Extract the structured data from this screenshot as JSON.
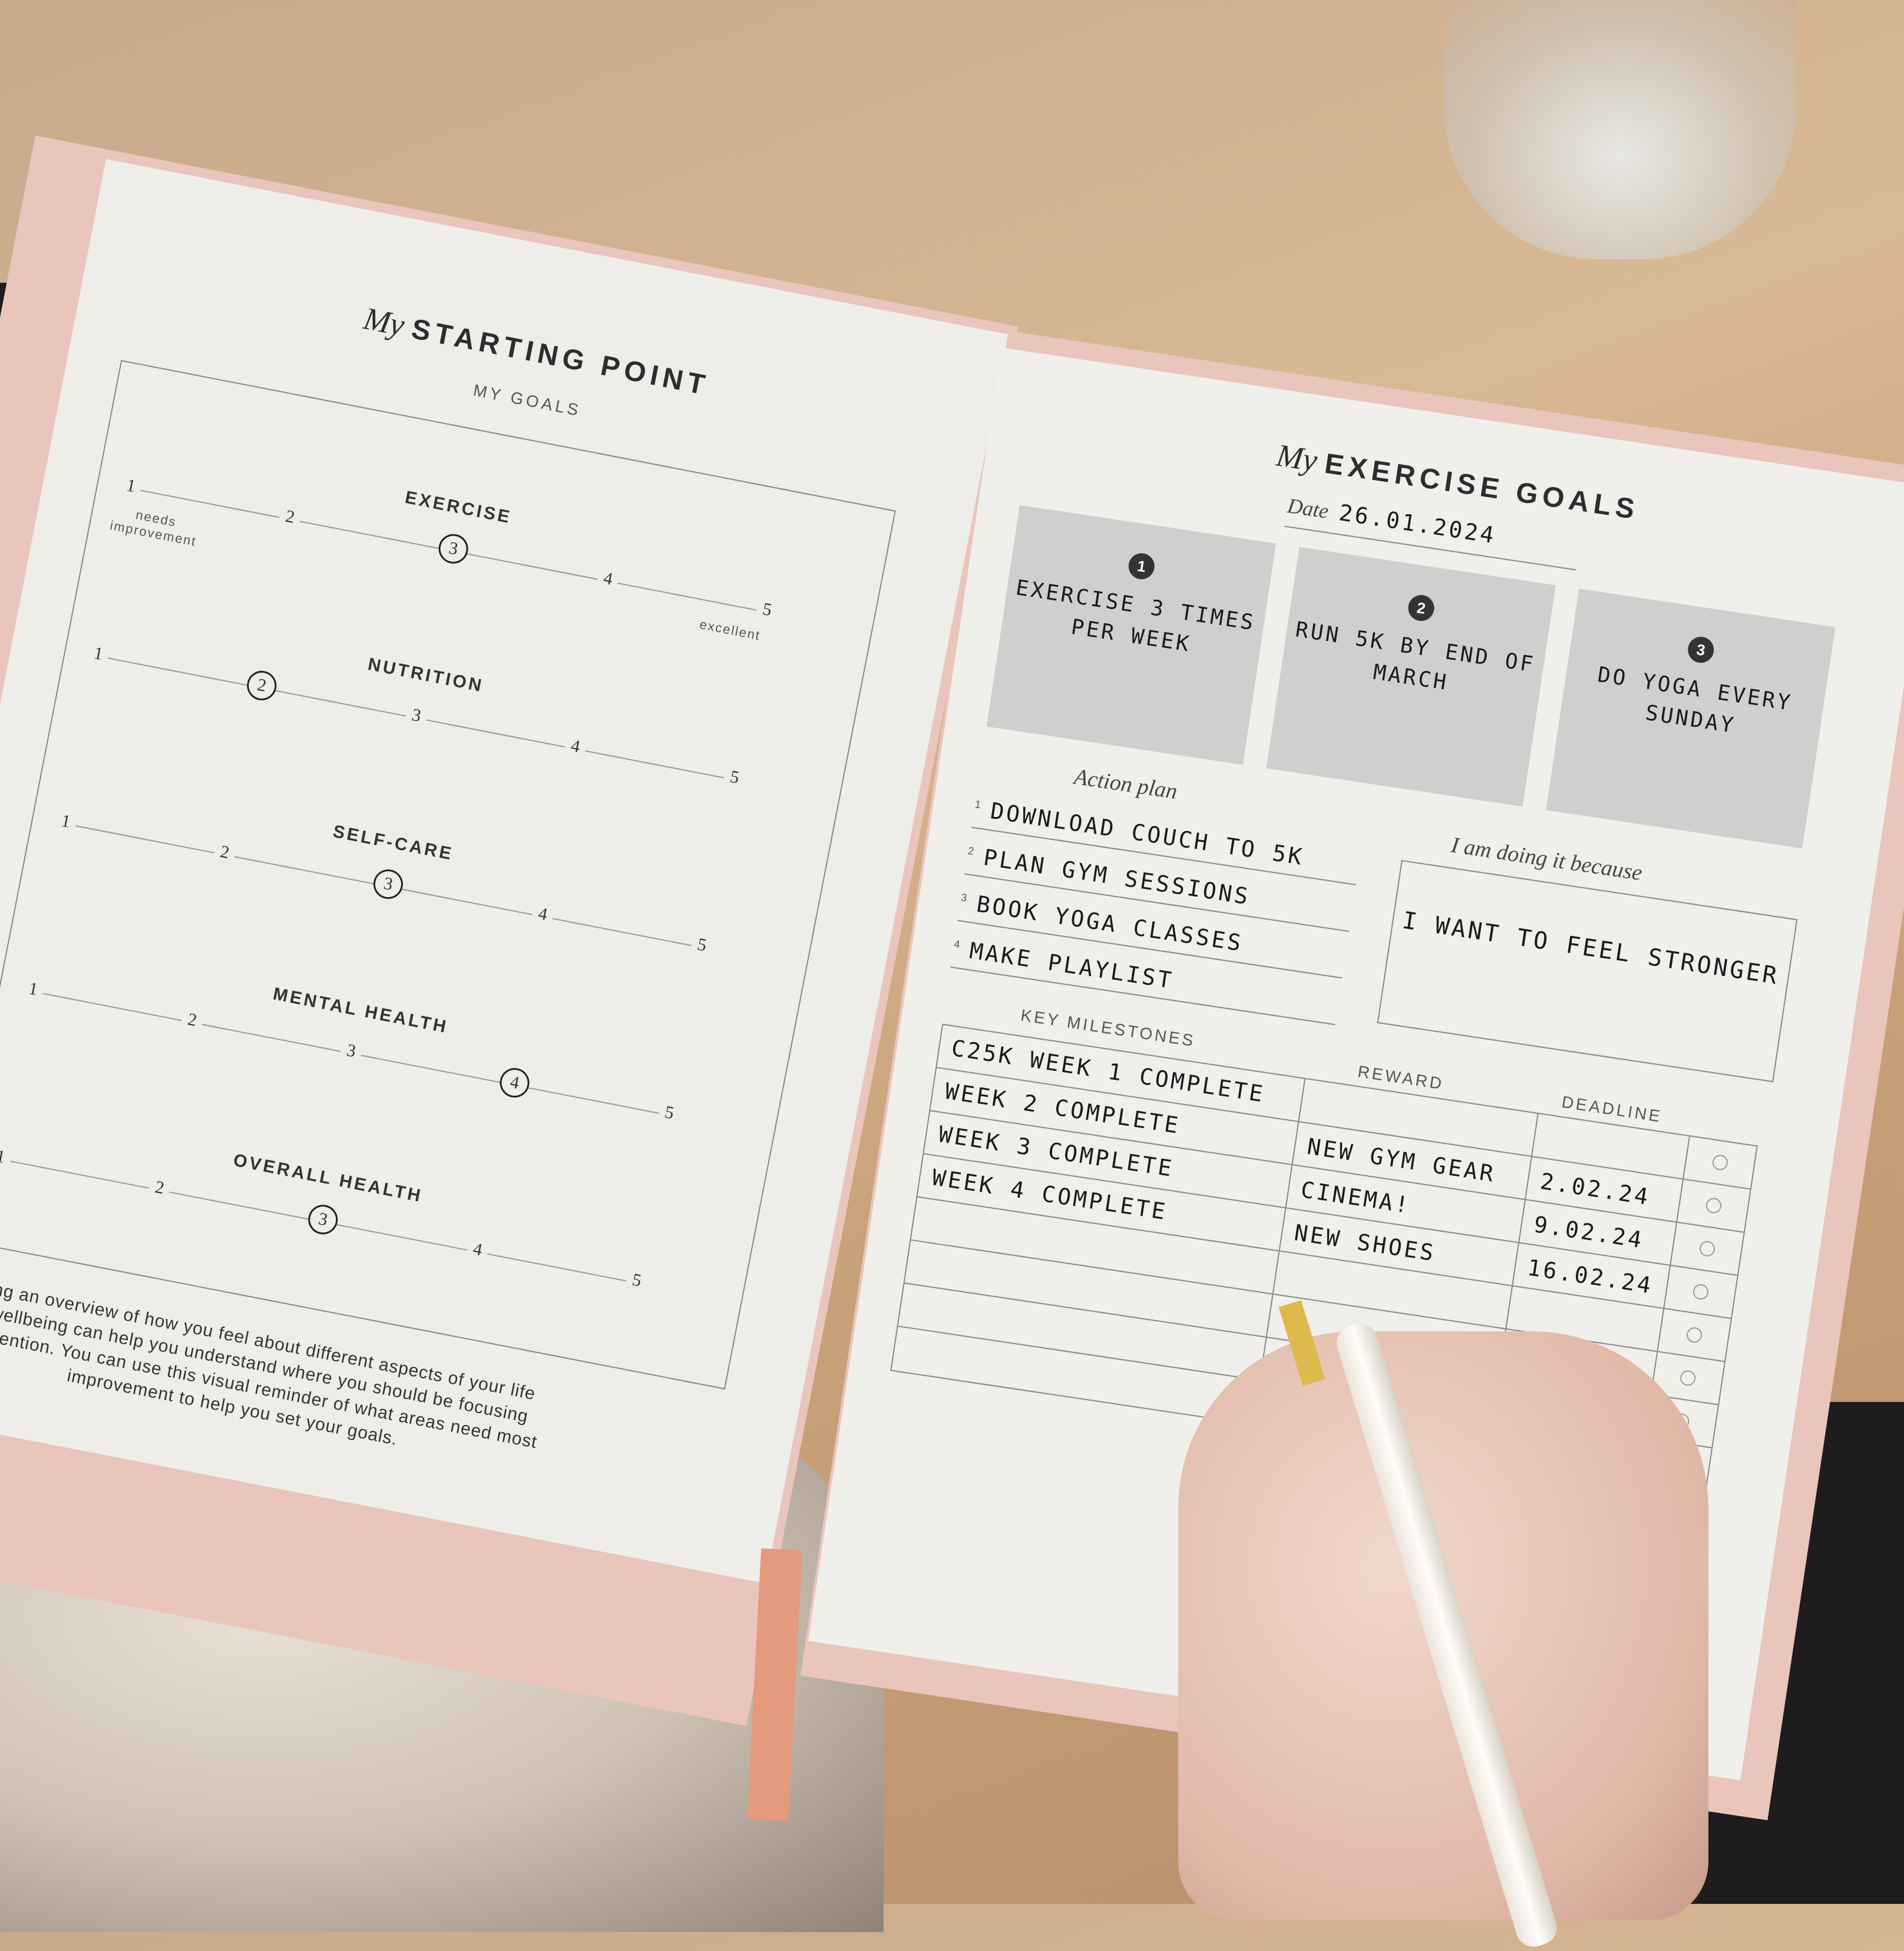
{
  "left_page": {
    "title_script": "My",
    "title": "STARTING POINT",
    "subtitle": "MY GOALS",
    "scale_low_label": "needs improvement",
    "scale_high_label": "excellent",
    "scales": [
      {
        "label": "EXERCISE",
        "selected": 3
      },
      {
        "label": "NUTRITION",
        "selected": 2
      },
      {
        "label": "SELF-CARE",
        "selected": 3
      },
      {
        "label": "MENTAL HEALTH",
        "selected": 4
      },
      {
        "label": "OVERALL HEALTH",
        "selected": 3
      }
    ],
    "scale_numbers": [
      "1",
      "2",
      "3",
      "4",
      "5"
    ],
    "paragraph": "Having an overview of how you feel about different aspects of your life and wellbeing can help you understand where you should be focusing your attention. You can use this visual reminder of what areas need most improvement to help you set your goals."
  },
  "right_page": {
    "title_script": "My",
    "title": "EXERCISE GOALS",
    "date_label": "Date",
    "date_value": "26.01.2024",
    "goals": [
      {
        "number": "1",
        "text": "Exercise 3 times per week"
      },
      {
        "number": "2",
        "text": "Run 5k by end of March"
      },
      {
        "number": "3",
        "text": "Do yoga every Sunday"
      }
    ],
    "action_plan_label": "Action plan",
    "action_plan": [
      {
        "number": "1",
        "text": "Download couch to 5k"
      },
      {
        "number": "2",
        "text": "Plan gym sessions"
      },
      {
        "number": "3",
        "text": "Book yoga classes"
      },
      {
        "number": "4",
        "text": "Make playlist"
      }
    ],
    "because_label": "I am doing it because",
    "because_text": "I want to feel stronger",
    "milestones_header": "KEY MILESTONES",
    "reward_header": "REWARD",
    "deadline_header": "DEADLINE",
    "milestones": [
      {
        "milestone": "C25k week 1 complete",
        "reward": "",
        "deadline": "",
        "done": false
      },
      {
        "milestone": "week 2 complete",
        "reward": "New gym gear",
        "deadline": "2.02.24",
        "done": false
      },
      {
        "milestone": "week 3 complete",
        "reward": "Cinema!",
        "deadline": "9.02.24",
        "done": false
      },
      {
        "milestone": "week 4 complete",
        "reward": "New shoes",
        "deadline": "16.02.24",
        "done": false
      },
      {
        "milestone": "",
        "reward": "",
        "deadline": "",
        "done": false
      },
      {
        "milestone": "",
        "reward": "",
        "deadline": "",
        "done": false
      },
      {
        "milestone": "",
        "reward": "",
        "deadline": "",
        "done": false
      },
      {
        "milestone": "",
        "reward": "",
        "deadline": "",
        "done": false
      }
    ]
  },
  "colors": {
    "cover": "#eac5bc",
    "paper": "#efeeeb",
    "goal_box": "#cfcfce",
    "ribbon": "#e49a7c"
  }
}
